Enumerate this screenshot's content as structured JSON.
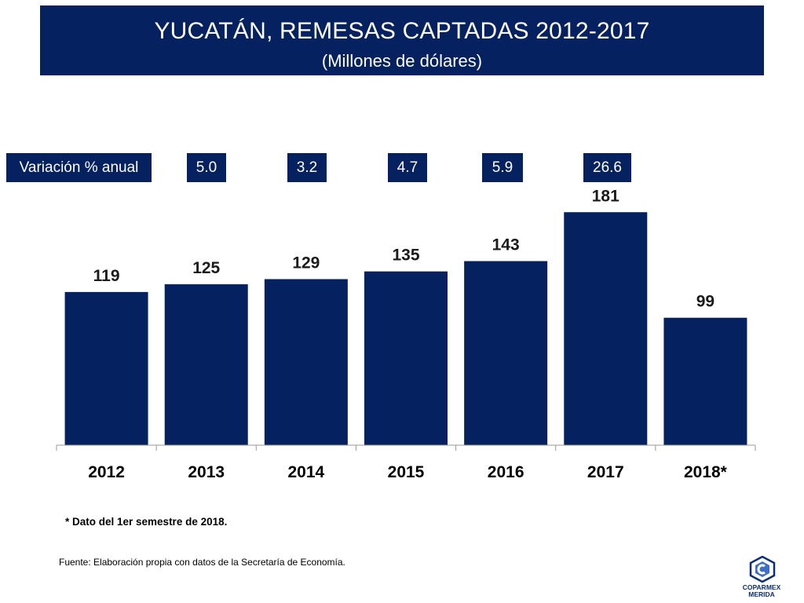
{
  "header": {
    "title": "YUCATÁN, REMESAS CAPTADAS 2012-2017",
    "subtitle": "(Millones de dólares)"
  },
  "variation": {
    "label": "Variación % anual",
    "values": [
      "5.0",
      "3.2",
      "4.7",
      "5.9",
      "26.6"
    ]
  },
  "chart_data": {
    "type": "bar",
    "title": "YUCATÁN, REMESAS CAPTADAS 2012-2017",
    "subtitle": "(Millones de dólares)",
    "categories": [
      "2012",
      "2013",
      "2014",
      "2015",
      "2016",
      "2017",
      "2018*"
    ],
    "values": [
      119,
      125,
      129,
      135,
      143,
      181,
      99
    ],
    "data_labels": [
      "119",
      "125",
      "129",
      "135",
      "143",
      "181",
      "99"
    ],
    "ylim": [
      0,
      200
    ],
    "grid": false,
    "legend": "none",
    "bar_color": "#05215f"
  },
  "notes": {
    "footnote": "* Dato del 1er semestre de 2018.",
    "source": "Fuente: Elaboración propia con datos de la Secretaría de Economía."
  },
  "logo": {
    "name": "COPARMEX",
    "city": "MERIDA"
  },
  "colors": {
    "primary": "#05215f",
    "logo": "#0b2f7a"
  }
}
